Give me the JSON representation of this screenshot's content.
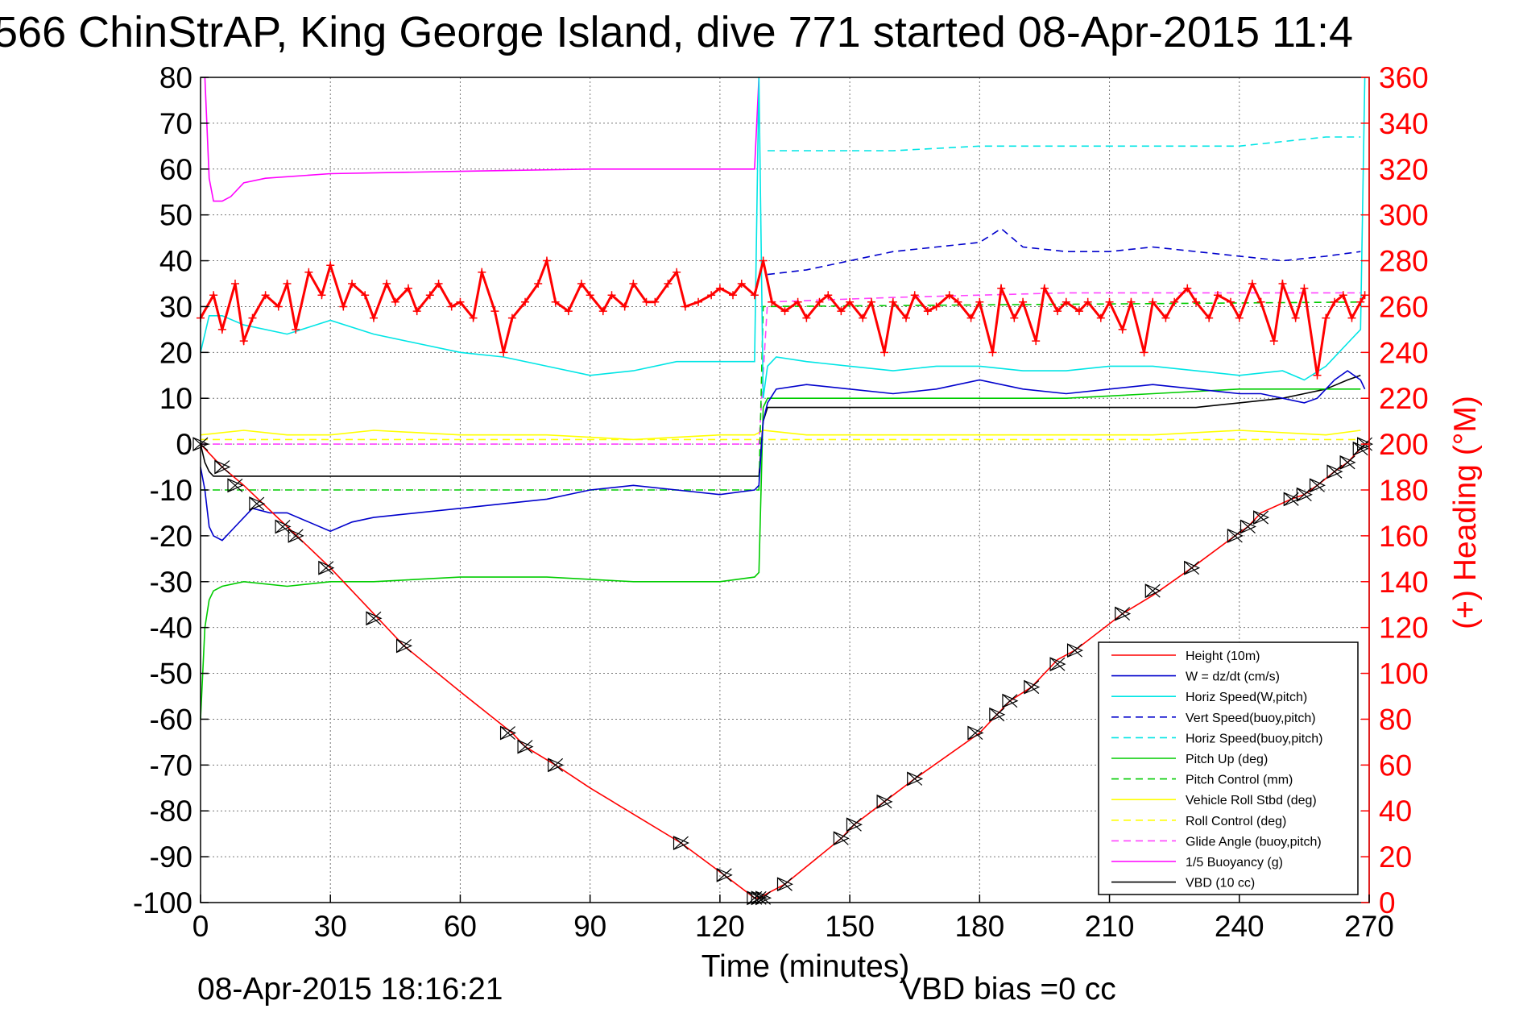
{
  "chart_data": {
    "type": "line",
    "title": "566 ChinStrAP, King George Island, dive 771 started 08-Apr-2015 11:4",
    "xlabel": "Time (minutes)",
    "ylabel_right": "(+) Heading (°M)",
    "xlim": [
      0,
      270
    ],
    "ylim": [
      -100,
      80
    ],
    "ylim_right": [
      0,
      360
    ],
    "x_ticks": [
      "0",
      "30",
      "60",
      "90",
      "120",
      "150",
      "180",
      "210",
      "240",
      "270"
    ],
    "y_ticks": [
      "80",
      "70",
      "60",
      "50",
      "40",
      "30",
      "20",
      "10",
      "0",
      "-10",
      "-20",
      "-30",
      "-40",
      "-50",
      "-60",
      "-70",
      "-80",
      "-90",
      "-100"
    ],
    "y_ticks_right": [
      "360",
      "340",
      "320",
      "300",
      "280",
      "260",
      "240",
      "220",
      "200",
      "180",
      "160",
      "140",
      "120",
      "100",
      "80",
      "60",
      "40",
      "20",
      "0"
    ],
    "grid": true,
    "legend_position": "bottom-right",
    "timestamp": "08-Apr-2015 18:16:21",
    "vbd_bias": "VBD bias =0 cc",
    "series": [
      {
        "name": "Height (10m)",
        "color": "#ff0000",
        "style": "solid",
        "x": [
          0,
          5,
          10,
          20,
          30,
          40,
          47,
          60,
          72,
          75,
          82,
          90,
          111,
          121,
          128,
          129,
          131,
          135,
          148,
          151,
          158,
          165,
          180,
          184,
          187,
          192,
          198,
          202,
          213,
          220,
          229,
          239,
          242,
          245,
          252,
          255,
          258,
          262,
          265,
          268,
          269
        ],
        "y": [
          0,
          -5,
          -9,
          -18,
          -27,
          -37,
          -44,
          -54,
          -63,
          -66,
          -70,
          -75,
          -87,
          -94,
          -99,
          -99,
          -98,
          -96,
          -86,
          -83,
          -78,
          -73,
          -63,
          -59,
          -56,
          -53,
          -47,
          -45,
          -37,
          -33,
          -27,
          -20,
          -18,
          -15,
          -12,
          -11,
          -9,
          -6,
          -4,
          -1,
          0
        ]
      },
      {
        "name": "W = dz/dt (cm/s)",
        "color": "#0000cc",
        "style": "solid",
        "x": [
          0,
          1,
          2,
          3,
          5,
          8,
          12,
          16,
          20,
          25,
          30,
          35,
          40,
          50,
          60,
          70,
          80,
          90,
          100,
          110,
          120,
          128,
          129,
          130,
          131,
          133,
          140,
          150,
          160,
          170,
          180,
          190,
          200,
          210,
          220,
          230,
          240,
          245,
          250,
          255,
          258,
          262,
          265,
          268,
          269
        ],
        "y": [
          -5,
          -10,
          -18,
          -20,
          -21,
          -18,
          -14,
          -15,
          -15,
          -17,
          -19,
          -17,
          -16,
          -15,
          -14,
          -13,
          -12,
          -10,
          -9,
          -10,
          -11,
          -10,
          -9,
          5,
          9,
          12,
          13,
          12,
          11,
          12,
          14,
          12,
          11,
          12,
          13,
          12,
          11,
          11,
          10,
          9,
          10,
          14,
          16,
          14,
          12
        ]
      },
      {
        "name": "Horiz Speed(W,pitch)",
        "color": "#00e5e5",
        "style": "solid",
        "x": [
          0,
          2,
          5,
          10,
          20,
          30,
          40,
          50,
          60,
          70,
          80,
          90,
          100,
          110,
          120,
          128,
          129,
          130,
          131,
          133,
          140,
          150,
          160,
          170,
          180,
          190,
          200,
          210,
          220,
          230,
          240,
          250,
          255,
          260,
          265,
          268,
          269
        ],
        "y": [
          20,
          28,
          28,
          26,
          24,
          27,
          24,
          22,
          20,
          19,
          17,
          15,
          16,
          18,
          18,
          18,
          80,
          10,
          17,
          19,
          18,
          17,
          16,
          17,
          17,
          16,
          16,
          17,
          17,
          16,
          15,
          16,
          14,
          17,
          22,
          25,
          80
        ]
      },
      {
        "name": "Vert Speed(buoy,pitch)",
        "color": "#0000cc",
        "style": "dashed",
        "x": [
          131,
          140,
          150,
          160,
          170,
          180,
          185,
          190,
          200,
          210,
          220,
          230,
          240,
          250,
          260,
          268
        ],
        "y": [
          37,
          38,
          40,
          42,
          43,
          44,
          47,
          43,
          42,
          42,
          43,
          42,
          41,
          40,
          41,
          42
        ]
      },
      {
        "name": "Horiz Speed(buoy,pitch)",
        "color": "#00e5e5",
        "style": "dashed",
        "x": [
          131,
          140,
          160,
          180,
          200,
          220,
          240,
          260,
          268
        ],
        "y": [
          64,
          64,
          64,
          65,
          65,
          65,
          65,
          67,
          67
        ]
      },
      {
        "name": "Pitch Up (deg)",
        "color": "#00cc00",
        "style": "solid",
        "x": [
          0,
          1,
          2,
          3,
          5,
          10,
          20,
          30,
          40,
          60,
          80,
          100,
          120,
          128,
          129,
          130,
          131,
          140,
          160,
          180,
          200,
          220,
          240,
          260,
          268
        ],
        "y": [
          -60,
          -40,
          -34,
          -32,
          -31,
          -30,
          -31,
          -30,
          -30,
          -29,
          -29,
          -30,
          -30,
          -29,
          -28,
          8,
          10,
          10,
          10,
          10,
          10,
          11,
          12,
          12,
          12
        ]
      },
      {
        "name": "Pitch Control (mm)",
        "color": "#00cc00",
        "style": "dashed",
        "x": [
          0,
          128,
          129,
          130,
          268
        ],
        "y": [
          -10,
          -10,
          -10,
          30,
          31
        ]
      },
      {
        "name": "Vehicle Roll Stbd (deg)",
        "color": "#ffff00",
        "style": "solid",
        "x": [
          0,
          10,
          20,
          30,
          40,
          60,
          80,
          100,
          120,
          128,
          130,
          140,
          160,
          180,
          200,
          220,
          240,
          260,
          268
        ],
        "y": [
          2,
          3,
          2,
          2,
          3,
          2,
          2,
          1,
          2,
          2,
          3,
          2,
          2,
          2,
          2,
          2,
          3,
          2,
          3
        ]
      },
      {
        "name": "Roll Control (deg)",
        "color": "#ffff00",
        "style": "dashed",
        "x": [
          0,
          128,
          129,
          268
        ],
        "y": [
          1,
          1,
          1,
          1
        ]
      },
      {
        "name": "Glide Angle (buoy,pitch)",
        "color": "#ff44ff",
        "style": "dashed",
        "x": [
          0,
          128,
          129,
          131,
          160,
          200,
          240,
          268
        ],
        "y": [
          0,
          0,
          0,
          31,
          32,
          33,
          33,
          33
        ]
      },
      {
        "name": "1/5 Buoyancy (g)",
        "color": "#ff00ff",
        "style": "solid",
        "x": [
          1,
          2,
          3,
          5,
          7,
          10,
          15,
          30,
          60,
          90,
          120,
          128,
          129
        ],
        "y": [
          80,
          58,
          53,
          53,
          54,
          57,
          58,
          59,
          59.5,
          60,
          60,
          60,
          80
        ]
      },
      {
        "name": "VBD (10 cc)",
        "color": "#000000",
        "style": "solid",
        "x": [
          0,
          1,
          2,
          3,
          128,
          129,
          130,
          131,
          220,
          230,
          240,
          250,
          255,
          260,
          265,
          268
        ],
        "y": [
          0,
          -4,
          -6,
          -7,
          -7,
          -7,
          5,
          8,
          8,
          8,
          9,
          10,
          11,
          12,
          14,
          15
        ]
      }
    ],
    "heading": {
      "name": "(+) Heading",
      "color": "#ff0000",
      "marker": "+",
      "x": [
        0,
        3,
        5,
        8,
        10,
        12,
        15,
        18,
        20,
        22,
        25,
        28,
        30,
        33,
        35,
        38,
        40,
        43,
        45,
        48,
        50,
        53,
        55,
        58,
        60,
        63,
        65,
        68,
        70,
        72,
        75,
        78,
        80,
        82,
        85,
        88,
        90,
        93,
        95,
        98,
        100,
        103,
        105,
        108,
        110,
        112,
        115,
        118,
        120,
        123,
        125,
        128,
        130,
        132,
        135,
        138,
        140,
        143,
        145,
        148,
        150,
        153,
        155,
        158,
        160,
        163,
        165,
        168,
        170,
        173,
        175,
        178,
        180,
        183,
        185,
        188,
        190,
        193,
        195,
        198,
        200,
        203,
        205,
        208,
        210,
        213,
        215,
        218,
        220,
        223,
        225,
        228,
        230,
        233,
        235,
        238,
        240,
        243,
        245,
        248,
        250,
        253,
        255,
        258,
        260,
        262,
        264,
        266,
        268,
        269
      ],
      "y": [
        255,
        265,
        250,
        270,
        245,
        255,
        265,
        260,
        270,
        250,
        275,
        265,
        278,
        260,
        270,
        265,
        255,
        270,
        262,
        268,
        258,
        265,
        270,
        260,
        262,
        255,
        275,
        258,
        240,
        255,
        262,
        270,
        280,
        262,
        258,
        270,
        265,
        258,
        265,
        260,
        270,
        262,
        262,
        270,
        275,
        260,
        262,
        265,
        268,
        265,
        270,
        265,
        280,
        262,
        258,
        262,
        255,
        262,
        265,
        258,
        262,
        255,
        262,
        240,
        262,
        255,
        265,
        258,
        260,
        265,
        262,
        255,
        262,
        240,
        268,
        255,
        262,
        245,
        268,
        258,
        262,
        258,
        262,
        255,
        262,
        250,
        262,
        240,
        262,
        255,
        262,
        268,
        262,
        255,
        265,
        262,
        255,
        270,
        262,
        245,
        270,
        255,
        268,
        230,
        255,
        262,
        265,
        255,
        262,
        265
      ]
    },
    "markers": {
      "x": [
        0,
        5,
        8,
        13,
        19,
        22,
        29,
        40,
        47,
        71,
        75,
        82,
        111,
        121,
        128,
        129,
        130,
        135,
        148,
        151,
        158,
        165,
        179,
        184,
        187,
        192,
        198,
        202,
        213,
        220,
        229,
        239,
        242,
        245,
        252,
        255,
        258,
        262,
        265,
        268,
        269
      ],
      "y": [
        0,
        -5,
        -9,
        -13,
        -18,
        -20,
        -27,
        -38,
        -44,
        -63,
        -66,
        -70,
        -87,
        -94,
        -99,
        -99,
        -99,
        -96,
        -86,
        -83,
        -78,
        -73,
        -63,
        -59,
        -56,
        -53,
        -48,
        -45,
        -37,
        -32,
        -27,
        -20,
        -18,
        -16,
        -12,
        -11,
        -9,
        -6,
        -4,
        -1,
        0
      ]
    }
  },
  "legend": [
    {
      "label": "Height (10m)",
      "color": "#ff0000",
      "style": "solid"
    },
    {
      "label": "W = dz/dt (cm/s)",
      "color": "#0000cc",
      "style": "solid"
    },
    {
      "label": "Horiz Speed(W,pitch)",
      "color": "#00e5e5",
      "style": "solid"
    },
    {
      "label": "Vert Speed(buoy,pitch)",
      "color": "#0000cc",
      "style": "dashed"
    },
    {
      "label": "Horiz Speed(buoy,pitch)",
      "color": "#00e5e5",
      "style": "dashed"
    },
    {
      "label": "Pitch Up (deg)",
      "color": "#00cc00",
      "style": "solid"
    },
    {
      "label": "Pitch Control (mm)",
      "color": "#00cc00",
      "style": "dashed"
    },
    {
      "label": "Vehicle Roll Stbd (deg)",
      "color": "#ffff00",
      "style": "solid"
    },
    {
      "label": "Roll Control (deg)",
      "color": "#ffff00",
      "style": "dashed"
    },
    {
      "label": "Glide Angle (buoy,pitch)",
      "color": "#ff44ff",
      "style": "dashed"
    },
    {
      "label": "1/5 Buoyancy (g)",
      "color": "#ff00ff",
      "style": "solid"
    },
    {
      "label": "VBD (10 cc)",
      "color": "#000000",
      "style": "solid"
    }
  ]
}
